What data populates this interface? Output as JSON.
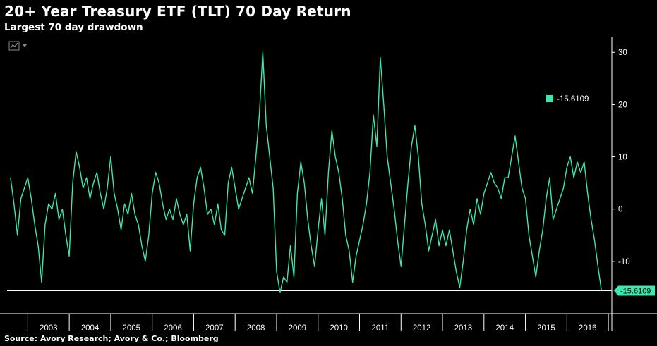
{
  "header": {
    "title": "20+ Year Treasury ETF (TLT) 70 Day Return",
    "subtitle": "Largest 70 day drawdown"
  },
  "footer": {
    "source": "Source: Avory Research; Avory & Co.; Bloomberg"
  },
  "toolbar": {
    "chart_type_icon": "line-chart-icon",
    "dropdown_icon": "triangle-down-icon"
  },
  "colors": {
    "background": "#000000",
    "series": "#3be8b0",
    "axis": "#ffffff",
    "tick_text": "#ffffff",
    "toolbar": "#8a8a8a"
  },
  "chart_data": {
    "type": "line",
    "title": "20+ Year Treasury ETF (TLT) 70 Day Return",
    "subtitle": "Largest 70 day drawdown",
    "xlabel": "",
    "ylabel": "",
    "x_ticks": [
      "2003",
      "2004",
      "2005",
      "2006",
      "2007",
      "2008",
      "2009",
      "2010",
      "2011",
      "2012",
      "2013",
      "2014",
      "2015",
      "2016"
    ],
    "xlim": [
      "2002-07",
      "2017-02"
    ],
    "y_ticks": [
      30,
      20,
      10,
      0,
      -10
    ],
    "ylim": [
      -20,
      33
    ],
    "grid": false,
    "y_axis_side": "right",
    "legend": {
      "position": "top-right",
      "label": "-15.6109"
    },
    "reference_line": {
      "value": -15.6109,
      "label": "-15.6109"
    },
    "series": [
      {
        "values": [
          [
            "2002-08",
            6
          ],
          [
            "2002-09",
            1
          ],
          [
            "2002-10",
            -5
          ],
          [
            "2002-11",
            2
          ],
          [
            "2002-12",
            4
          ],
          [
            "2003-01",
            6
          ],
          [
            "2003-02",
            2
          ],
          [
            "2003-03",
            -3
          ],
          [
            "2003-04",
            -7
          ],
          [
            "2003-05",
            -14
          ],
          [
            "2003-06",
            -3
          ],
          [
            "2003-07",
            1
          ],
          [
            "2003-08",
            0
          ],
          [
            "2003-09",
            3
          ],
          [
            "2003-10",
            -2
          ],
          [
            "2003-11",
            0
          ],
          [
            "2003-12",
            -5
          ],
          [
            "2004-01",
            -9
          ],
          [
            "2004-02",
            5
          ],
          [
            "2004-03",
            11
          ],
          [
            "2004-04",
            8
          ],
          [
            "2004-05",
            4
          ],
          [
            "2004-06",
            6
          ],
          [
            "2004-07",
            2
          ],
          [
            "2004-08",
            5
          ],
          [
            "2004-09",
            7
          ],
          [
            "2004-10",
            3
          ],
          [
            "2004-11",
            0
          ],
          [
            "2004-12",
            4
          ],
          [
            "2005-01",
            10
          ],
          [
            "2005-02",
            3
          ],
          [
            "2005-03",
            0
          ],
          [
            "2005-04",
            -4
          ],
          [
            "2005-05",
            1
          ],
          [
            "2005-06",
            -1
          ],
          [
            "2005-07",
            3
          ],
          [
            "2005-08",
            -1
          ],
          [
            "2005-09",
            -3
          ],
          [
            "2005-10",
            -7
          ],
          [
            "2005-11",
            -10
          ],
          [
            "2005-12",
            -5
          ],
          [
            "2006-01",
            3
          ],
          [
            "2006-02",
            7
          ],
          [
            "2006-03",
            5
          ],
          [
            "2006-04",
            1
          ],
          [
            "2006-05",
            -2
          ],
          [
            "2006-06",
            0
          ],
          [
            "2006-07",
            -2
          ],
          [
            "2006-08",
            2
          ],
          [
            "2006-09",
            -1
          ],
          [
            "2006-10",
            -3
          ],
          [
            "2006-11",
            -1
          ],
          [
            "2006-12",
            -8
          ],
          [
            "2007-01",
            1
          ],
          [
            "2007-02",
            6
          ],
          [
            "2007-03",
            8
          ],
          [
            "2007-04",
            4
          ],
          [
            "2007-05",
            -1
          ],
          [
            "2007-06",
            0
          ],
          [
            "2007-07",
            -3
          ],
          [
            "2007-08",
            1
          ],
          [
            "2007-09",
            -4
          ],
          [
            "2007-10",
            -5
          ],
          [
            "2007-11",
            5
          ],
          [
            "2007-12",
            8
          ],
          [
            "2008-01",
            4
          ],
          [
            "2008-02",
            0
          ],
          [
            "2008-03",
            2
          ],
          [
            "2008-04",
            4
          ],
          [
            "2008-05",
            6
          ],
          [
            "2008-06",
            3
          ],
          [
            "2008-07",
            10
          ],
          [
            "2008-08",
            18
          ],
          [
            "2008-09",
            30
          ],
          [
            "2008-10",
            16
          ],
          [
            "2008-11",
            10
          ],
          [
            "2008-12",
            4
          ],
          [
            "2009-01",
            -12
          ],
          [
            "2009-02",
            -16
          ],
          [
            "2009-03",
            -13
          ],
          [
            "2009-04",
            -14
          ],
          [
            "2009-05",
            -7
          ],
          [
            "2009-06",
            -13
          ],
          [
            "2009-07",
            3
          ],
          [
            "2009-08",
            9
          ],
          [
            "2009-09",
            5
          ],
          [
            "2009-10",
            -2
          ],
          [
            "2009-11",
            -7
          ],
          [
            "2009-12",
            -11
          ],
          [
            "2010-01",
            -4
          ],
          [
            "2010-02",
            2
          ],
          [
            "2010-03",
            -5
          ],
          [
            "2010-04",
            7
          ],
          [
            "2010-05",
            15
          ],
          [
            "2010-06",
            10
          ],
          [
            "2010-07",
            7
          ],
          [
            "2010-08",
            2
          ],
          [
            "2010-09",
            -5
          ],
          [
            "2010-10",
            -8
          ],
          [
            "2010-11",
            -14
          ],
          [
            "2010-12",
            -9
          ],
          [
            "2011-01",
            -6
          ],
          [
            "2011-02",
            -3
          ],
          [
            "2011-03",
            1
          ],
          [
            "2011-04",
            7
          ],
          [
            "2011-05",
            18
          ],
          [
            "2011-06",
            12
          ],
          [
            "2011-07",
            29
          ],
          [
            "2011-08",
            20
          ],
          [
            "2011-09",
            10
          ],
          [
            "2011-10",
            5
          ],
          [
            "2011-11",
            0
          ],
          [
            "2011-12",
            -6
          ],
          [
            "2012-01",
            -11
          ],
          [
            "2012-02",
            -3
          ],
          [
            "2012-03",
            5
          ],
          [
            "2012-04",
            12
          ],
          [
            "2012-05",
            16
          ],
          [
            "2012-06",
            10
          ],
          [
            "2012-07",
            1
          ],
          [
            "2012-08",
            -3
          ],
          [
            "2012-09",
            -8
          ],
          [
            "2012-10",
            -5
          ],
          [
            "2012-11",
            -2
          ],
          [
            "2012-12",
            -7
          ],
          [
            "2013-01",
            -4
          ],
          [
            "2013-02",
            -7
          ],
          [
            "2013-03",
            -4
          ],
          [
            "2013-04",
            -8
          ],
          [
            "2013-05",
            -12
          ],
          [
            "2013-06",
            -15
          ],
          [
            "2013-07",
            -10
          ],
          [
            "2013-08",
            -4
          ],
          [
            "2013-09",
            0
          ],
          [
            "2013-10",
            -3
          ],
          [
            "2013-11",
            2
          ],
          [
            "2013-12",
            -1
          ],
          [
            "2014-01",
            3
          ],
          [
            "2014-02",
            5
          ],
          [
            "2014-03",
            7
          ],
          [
            "2014-04",
            5
          ],
          [
            "2014-05",
            4
          ],
          [
            "2014-06",
            2
          ],
          [
            "2014-07",
            6
          ],
          [
            "2014-08",
            6
          ],
          [
            "2014-09",
            10
          ],
          [
            "2014-10",
            14
          ],
          [
            "2014-11",
            9
          ],
          [
            "2014-12",
            4
          ],
          [
            "2015-01",
            2
          ],
          [
            "2015-02",
            -5
          ],
          [
            "2015-03",
            -9
          ],
          [
            "2015-04",
            -13
          ],
          [
            "2015-05",
            -8
          ],
          [
            "2015-06",
            -4
          ],
          [
            "2015-07",
            2
          ],
          [
            "2015-08",
            6
          ],
          [
            "2015-09",
            -2
          ],
          [
            "2015-10",
            0
          ],
          [
            "2015-11",
            2
          ],
          [
            "2015-12",
            4
          ],
          [
            "2016-01",
            8
          ],
          [
            "2016-02",
            10
          ],
          [
            "2016-03",
            6
          ],
          [
            "2016-04",
            9
          ],
          [
            "2016-05",
            7
          ],
          [
            "2016-06",
            9
          ],
          [
            "2016-07",
            3
          ],
          [
            "2016-08",
            -2
          ],
          [
            "2016-09",
            -6
          ],
          [
            "2016-10",
            -11
          ],
          [
            "2016-11",
            -15.6109
          ]
        ]
      }
    ]
  }
}
